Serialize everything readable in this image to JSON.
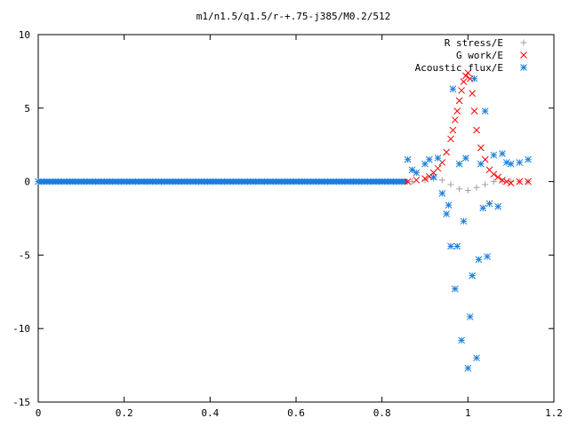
{
  "chart_data": {
    "type": "scatter",
    "title": "m1/n1.5/q1.5/r-+.75-j385/M0.2/512",
    "xlim": [
      0,
      1.2
    ],
    "ylim": [
      -15,
      10
    ],
    "x_ticks": [
      "0",
      "0.2",
      "0.4",
      "0.6",
      "0.8",
      "1",
      "1.2"
    ],
    "y_ticks": [
      "10",
      "5",
      "0",
      "-5",
      "-10",
      "-15"
    ],
    "x_tick_values": [
      0,
      0.2,
      0.4,
      0.6,
      0.8,
      1.0,
      1.2
    ],
    "y_tick_values": [
      10,
      5,
      0,
      -5,
      -10,
      -15
    ],
    "grid": false,
    "legend_position": "top-right",
    "series": [
      {
        "name": "R stress/E",
        "marker": "plus",
        "color": "#a0a0a0",
        "x": [
          0.87,
          0.9,
          0.92,
          0.94,
          0.96,
          0.98,
          1.0,
          1.02,
          1.04,
          1.06,
          1.08,
          1.1,
          1.12,
          1.14
        ],
        "y": [
          0.0,
          0.1,
          0.2,
          0.1,
          -0.2,
          -0.5,
          -0.6,
          -0.4,
          -0.2,
          0.0,
          0.0,
          0.0,
          0.0,
          0.0
        ]
      },
      {
        "name": "G work/E",
        "marker": "cross",
        "color": "#ff0000",
        "x": [
          0.86,
          0.88,
          0.9,
          0.91,
          0.92,
          0.93,
          0.94,
          0.95,
          0.96,
          0.965,
          0.97,
          0.975,
          0.98,
          0.985,
          0.99,
          0.995,
          1.0,
          1.005,
          1.01,
          1.015,
          1.02,
          1.03,
          1.04,
          1.05,
          1.06,
          1.07,
          1.08,
          1.09,
          1.1,
          1.12,
          1.14
        ],
        "y": [
          0.0,
          0.1,
          0.2,
          0.35,
          0.6,
          0.9,
          1.3,
          2.0,
          2.9,
          3.5,
          4.2,
          4.8,
          5.5,
          6.2,
          6.8,
          7.2,
          7.4,
          7.0,
          6.0,
          4.8,
          3.5,
          2.3,
          1.5,
          0.8,
          0.5,
          0.3,
          0.1,
          0.0,
          -0.1,
          0.0,
          0.0
        ]
      },
      {
        "name": "Acoustic flux/E",
        "marker": "asterisk",
        "color": "#1a7fdc",
        "x": [
          0.0,
          0.02,
          0.04,
          0.06,
          0.08,
          0.1,
          0.12,
          0.14,
          0.16,
          0.18,
          0.2,
          0.22,
          0.24,
          0.26,
          0.28,
          0.3,
          0.32,
          0.34,
          0.36,
          0.38,
          0.4,
          0.42,
          0.44,
          0.46,
          0.48,
          0.5,
          0.52,
          0.54,
          0.56,
          0.58,
          0.6,
          0.62,
          0.64,
          0.66,
          0.68,
          0.7,
          0.72,
          0.74,
          0.76,
          0.78,
          0.8,
          0.82,
          0.84,
          0.86,
          0.87,
          0.88,
          0.9,
          0.91,
          0.92,
          0.93,
          0.94,
          0.95,
          0.955,
          0.96,
          0.965,
          0.97,
          0.975,
          0.98,
          0.985,
          0.99,
          0.995,
          1.0,
          1.005,
          1.01,
          1.015,
          1.02,
          1.025,
          1.03,
          1.035,
          1.04,
          1.045,
          1.05,
          1.06,
          1.07,
          1.08,
          1.09,
          1.1,
          1.12,
          1.14
        ],
        "y": [
          0.0,
          0.0,
          0.0,
          0.0,
          0.0,
          0.0,
          0.0,
          0.0,
          0.0,
          0.0,
          0.0,
          0.0,
          0.0,
          0.0,
          0.0,
          0.0,
          0.0,
          0.0,
          0.0,
          0.0,
          0.0,
          0.0,
          0.0,
          0.0,
          0.0,
          0.0,
          0.0,
          0.0,
          0.0,
          0.0,
          0.0,
          0.0,
          0.0,
          0.0,
          0.0,
          0.0,
          0.0,
          0.0,
          0.0,
          0.0,
          0.0,
          0.0,
          0.0,
          1.5,
          0.8,
          0.6,
          1.2,
          1.5,
          0.3,
          1.6,
          -0.8,
          -2.2,
          -1.6,
          -4.4,
          6.3,
          -7.3,
          -4.4,
          1.2,
          -10.8,
          -2.7,
          1.6,
          -12.7,
          -9.2,
          -6.4,
          7.0,
          -12.0,
          -5.3,
          1.2,
          -1.8,
          4.8,
          -5.1,
          -1.5,
          1.8,
          -1.7,
          1.9,
          1.3,
          1.2,
          1.3,
          1.5
        ]
      }
    ]
  }
}
